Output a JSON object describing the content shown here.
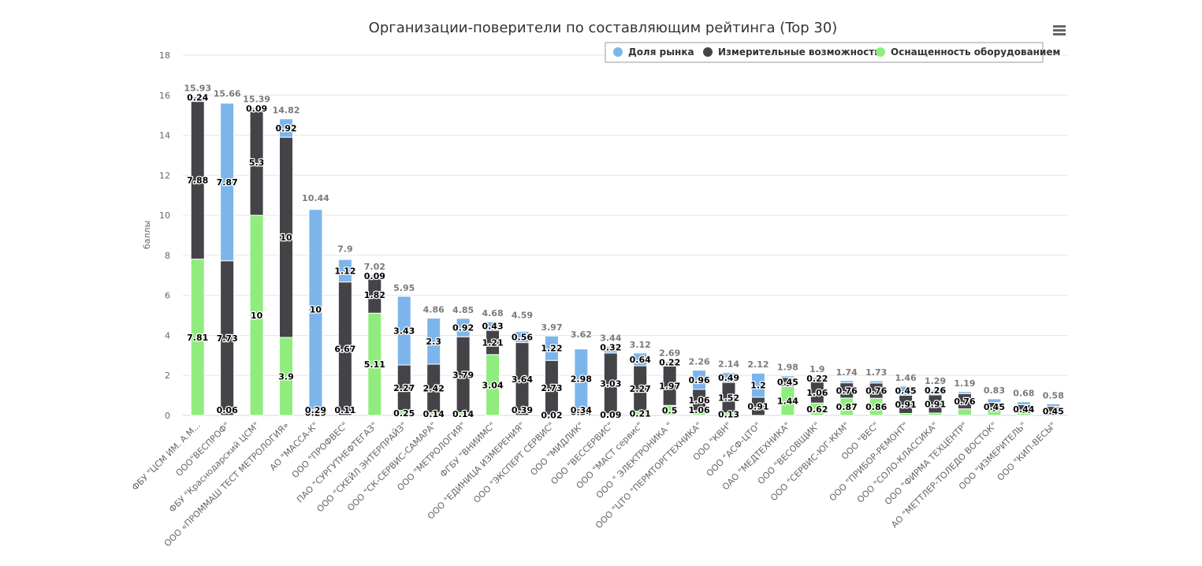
{
  "chart_data": {
    "type": "bar",
    "stacked": true,
    "title": "Организации-поверители по составляющим рейтинга (Top 30)",
    "ylabel": "баллы",
    "xlabel": "",
    "ylim": [
      0,
      18
    ],
    "yticks": [
      0,
      2,
      4,
      6,
      8,
      10,
      12,
      14,
      16,
      18
    ],
    "grid": true,
    "legend_position": "top-right",
    "menu_icon": "hamburger-menu-icon",
    "categories": [
      "ФБУ \"ЦСМ ИМ. А.М...",
      "ООО\"ВЕСПРОФ\"",
      "ФБУ \"Краснодарский ЦСМ\"",
      "ООО «ПРОММАШ ТЕСТ МЕТРОЛОГИЯ»",
      "АО \"МАССА-К\"",
      "ООО \"ПРОФВЕС\"",
      "ПАО \"СУРГУТНЕФТЕГАЗ\"",
      "ООО \"СКЕЙЛ ЭНТЕРПРАЙЗ\"",
      "ООО \"СК-СЕРВИС-САМАРА\"",
      "ООО \"МЕТРОЛОГИЯ\"",
      "ФГБУ \"ВНИИМС\"",
      "ООО \"ЕДИНИЦА ИЗМЕРЕНИЯ\"",
      "ООО \"ЭКСПЕРТ СЕРВИС\"",
      "ООО \"МИДЛИК\"",
      "ООО \"ВЕССЕРВИС\"",
      "ООО \"МАСТ сервис\"",
      "ООО \" ЭЛЕКТРОНИКА \"",
      "ООО \"ЦТО \"ПЕРМТОРГТЕХНИКА\"",
      "ООО \"КВН\"",
      "ООО \"АСФ-ЦТО\"",
      "ОАО \"МЕДТЕХНИКА\"",
      "ООО \"ВЕСОВЩИК\"",
      "ООО \"СЕРВИС-ЮГ-ККМ\"",
      "ООО \"ВЕС\"",
      "ООО \"ПРИБОР-РЕМОНТ\"",
      "ООО \"СОЛО-КЛАССИКА\"",
      "ООО \"ФИРМА ТЕХЦЕНТР\"",
      "АО \"МЕТТЛЕР-ТОЛЕДО ВОСТОК\"",
      "ООО \"ИЗМЕРИТЕЛЬ\"",
      "ООО \"КИП-ВЕСЫ\""
    ],
    "totals": [
      15.93,
      15.66,
      15.39,
      14.82,
      10.44,
      7.9,
      7.02,
      5.95,
      4.86,
      4.85,
      4.68,
      4.59,
      3.97,
      3.62,
      3.44,
      3.12,
      2.69,
      2.26,
      2.14,
      2.12,
      1.98,
      1.9,
      1.74,
      1.73,
      1.46,
      1.29,
      1.19,
      0.83,
      0.68,
      0.58
    ],
    "series": [
      {
        "name": "Оснащенность оборудованием",
        "color": "#90ed7d",
        "values": [
          7.81,
          0,
          10,
          3.9,
          0,
          0,
          5.11,
          0.25,
          0.14,
          0.14,
          3.04,
          0,
          0.02,
          0,
          0.09,
          0.21,
          0.5,
          0.24,
          0.13,
          0,
          1.44,
          0.62,
          0.87,
          0.86,
          0.1,
          0.12,
          0.33,
          0.2,
          0.1,
          0
        ],
        "labels": [
          "7.81",
          "",
          "10",
          "3.9",
          "",
          "",
          "5.11",
          "0.25",
          "0.14",
          "0.14",
          "3.04",
          "",
          "0.02",
          "",
          "0.09",
          "0.21",
          "0.5",
          "",
          "0.13",
          "",
          "1.44",
          "0.62",
          "0.87",
          "0.86",
          "",
          "",
          "",
          "",
          "",
          ""
        ]
      },
      {
        "name": "Измерительные возможности",
        "color": "#434348",
        "values": [
          7.88,
          7.73,
          5.3,
          10,
          0.29,
          6.67,
          1.82,
          2.27,
          2.42,
          3.79,
          1.21,
          3.64,
          2.73,
          0.34,
          3.03,
          2.27,
          1.97,
          1.06,
          1.52,
          0.91,
          0.45,
          1.06,
          0.76,
          0.76,
          0.91,
          0.91,
          0.76,
          0.45,
          0.44,
          0.45
        ],
        "labels": [
          "7.88",
          "7.73",
          "5.3",
          "10",
          "0.29",
          "6.67",
          "1.82",
          "2.27",
          "2.42",
          "3.79",
          "1.21",
          "3.64",
          "2.73",
          "0.34",
          "3.03",
          "2.27",
          "1.97",
          "1.06",
          "1.52",
          "0.91",
          "0.45",
          "1.06",
          "0.76",
          "0.76",
          "0.91",
          "0.91",
          "0.76",
          "0.45",
          "0.44",
          "0.45"
        ]
      },
      {
        "name": "Доля рынка",
        "color": "#7cb5ec",
        "values": [
          0.24,
          7.87,
          0.09,
          0.92,
          10,
          1.12,
          0.09,
          3.43,
          2.3,
          0.92,
          0.43,
          0.56,
          1.22,
          2.98,
          0.32,
          0.64,
          0.22,
          0.96,
          0.49,
          1.2,
          0.09,
          0.22,
          0.11,
          0.11,
          0.45,
          0.26,
          0.1,
          0.18,
          0.14,
          0.13
        ],
        "labels": [
          "0.24",
          "7.87",
          "0.09",
          "0.92",
          "10",
          "1.12",
          "0.09",
          "3.43",
          "2.3",
          "0.92",
          "0.43",
          "0.56",
          "1.22",
          "2.98",
          "0.32",
          "0.64",
          "0.22",
          "0.96",
          "0.49",
          "1.2",
          "",
          "0.22",
          "",
          "",
          "0.45",
          "0.26",
          "",
          "",
          "",
          ""
        ]
      }
    ],
    "bottom_labels": [
      "",
      "0.06",
      "",
      "",
      "0.29",
      "0.11",
      "",
      "",
      "",
      "",
      "",
      "0.39",
      "",
      "0.34",
      "",
      "",
      "",
      "1.06",
      "",
      "",
      "",
      "",
      "",
      "",
      "",
      "",
      "",
      "",
      "",
      ""
    ],
    "legend": [
      {
        "name": "Доля рынка",
        "color": "#7cb5ec"
      },
      {
        "name": "Измерительные возможности",
        "color": "#434348"
      },
      {
        "name": "Оснащенность оборудованием",
        "color": "#90ed7d"
      }
    ]
  }
}
